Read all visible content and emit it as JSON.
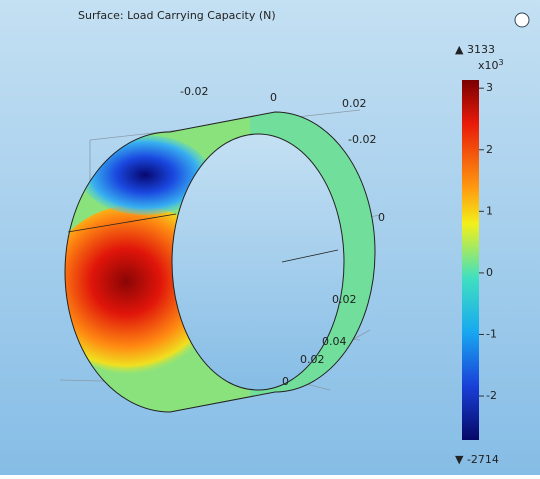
{
  "title": "Surface: Load Carrying Capacity (N)",
  "colorbar": {
    "max_label": "▲ 3133",
    "min_label": "▼ -2714",
    "scale_label": "x10",
    "scale_exponent": "3",
    "ylim": [
      -2.714,
      3.133
    ],
    "yticks": [
      3,
      2,
      1,
      0,
      -1,
      -2
    ]
  },
  "axes": {
    "top": [
      -0.02,
      0,
      0.02
    ],
    "right": [
      -0.02,
      0,
      0.02,
      0.04
    ],
    "bottom": [
      0.02,
      0
    ]
  }
}
